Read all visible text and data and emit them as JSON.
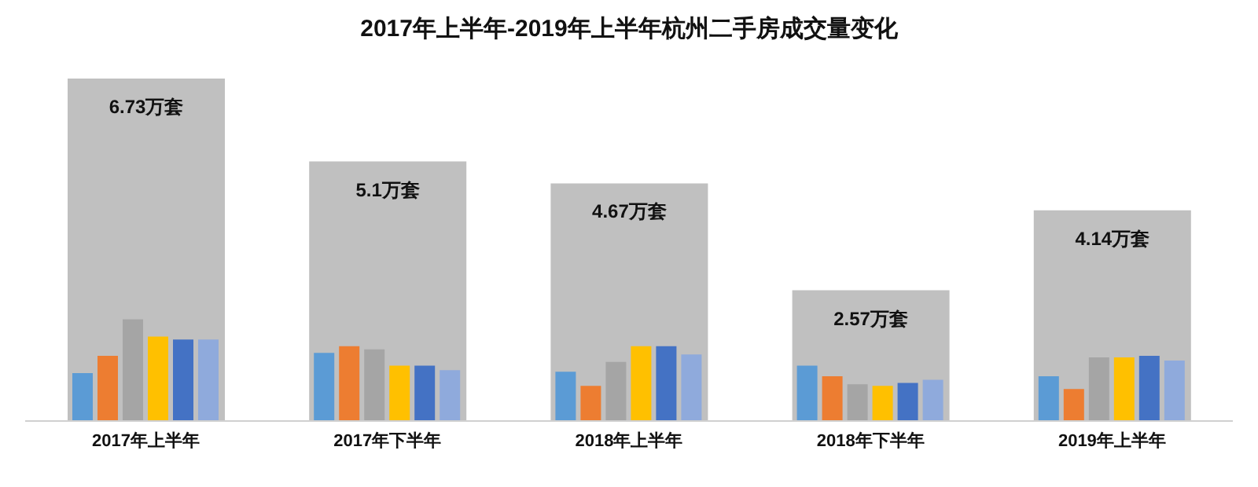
{
  "chart_data": {
    "type": "bar",
    "title": "2017年上半年-2019年上半年杭州二手房成交量变化",
    "categories": [
      "2017年上半年",
      "2017年下半年",
      "2018年上半年",
      "2018年下半年",
      "2019年上半年"
    ],
    "tick_labels": "x",
    "grid": false,
    "legend": false,
    "series": [
      {
        "color": "#c0c0c0",
        "values": [
          6.73,
          5.1,
          4.67,
          2.57,
          4.14
        ],
        "value_labels": [
          "6.73万套",
          "5.1万套",
          "4.67万套",
          "2.57万套",
          "4.14万套"
        ]
      },
      {
        "color": "#5b9bd5",
        "values": [
          0.94,
          1.34,
          0.97,
          1.09,
          0.88
        ]
      },
      {
        "color": "#ed7d31",
        "values": [
          1.28,
          1.47,
          0.69,
          0.88,
          0.63
        ]
      },
      {
        "color": "#a5a5a5",
        "values": [
          2.0,
          1.41,
          1.16,
          0.72,
          1.25
        ]
      },
      {
        "color": "#ffc000",
        "values": [
          1.66,
          1.09,
          1.47,
          0.69,
          1.25
        ]
      },
      {
        "color": "#4472c4",
        "values": [
          1.6,
          1.09,
          1.47,
          0.75,
          1.28
        ]
      },
      {
        "color": "#8faadc",
        "values": [
          1.6,
          1.0,
          1.31,
          0.81,
          1.19
        ]
      }
    ]
  }
}
